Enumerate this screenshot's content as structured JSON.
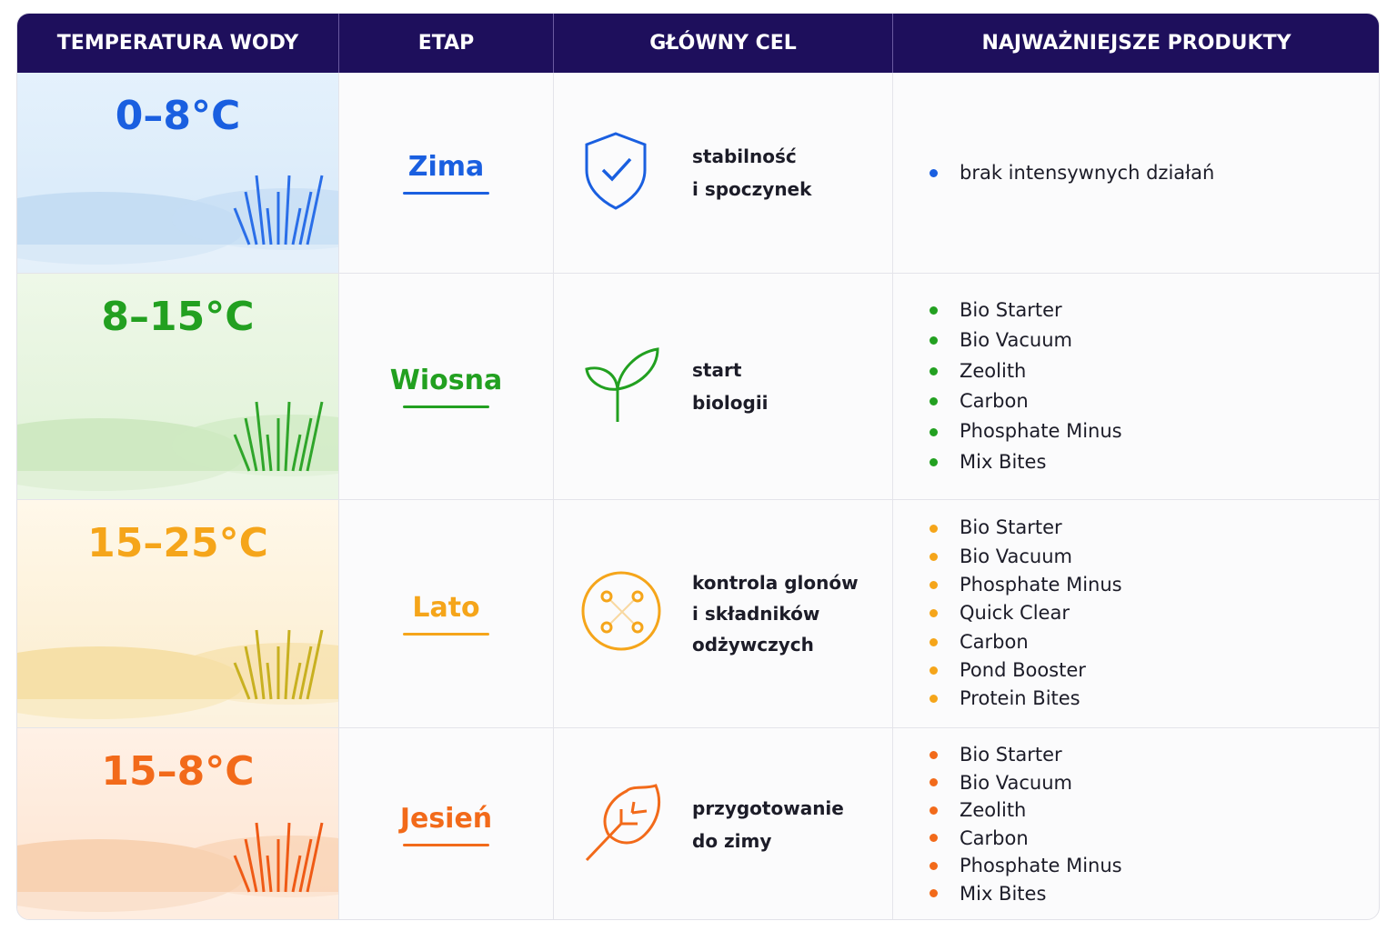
{
  "table": {
    "header": [
      "TEMPERATURA WODY",
      "ETAP",
      "GŁÓWNY CEL",
      "NAJWAŻNIEJSZE PRODUKTY"
    ],
    "rows": [
      {
        "temperature": "0–8°C",
        "stage": "Zima",
        "goal": [
          "stabilność",
          "i spoczynek"
        ],
        "products": [
          "brak intensywnych działań"
        ]
      },
      {
        "temperature": "8–15°C",
        "stage": "Wiosna",
        "goal": [
          "start",
          "biologii"
        ],
        "products": [
          "Bio Starter",
          "Bio Vacuum",
          "Zeolith",
          "Carbon",
          "Phosphate Minus",
          "Mix Bites"
        ]
      },
      {
        "temperature": "15–25°C",
        "stage": "Lato",
        "goal": [
          "kontrola glonów",
          "i składników",
          "odżywczych"
        ],
        "products": [
          "Bio Starter",
          "Bio Vacuum",
          "Phosphate Minus",
          "Quick Clear",
          "Carbon",
          "Pond Booster",
          "Protein Bites"
        ]
      },
      {
        "temperature": "15–8°C",
        "stage": "Jesień",
        "goal": [
          "przygotowanie",
          "do zimy"
        ],
        "products": [
          "Bio Starter",
          "Bio Vacuum",
          "Zeolith",
          "Carbon",
          "Phosphate Minus",
          "Mix Bites"
        ]
      }
    ]
  }
}
